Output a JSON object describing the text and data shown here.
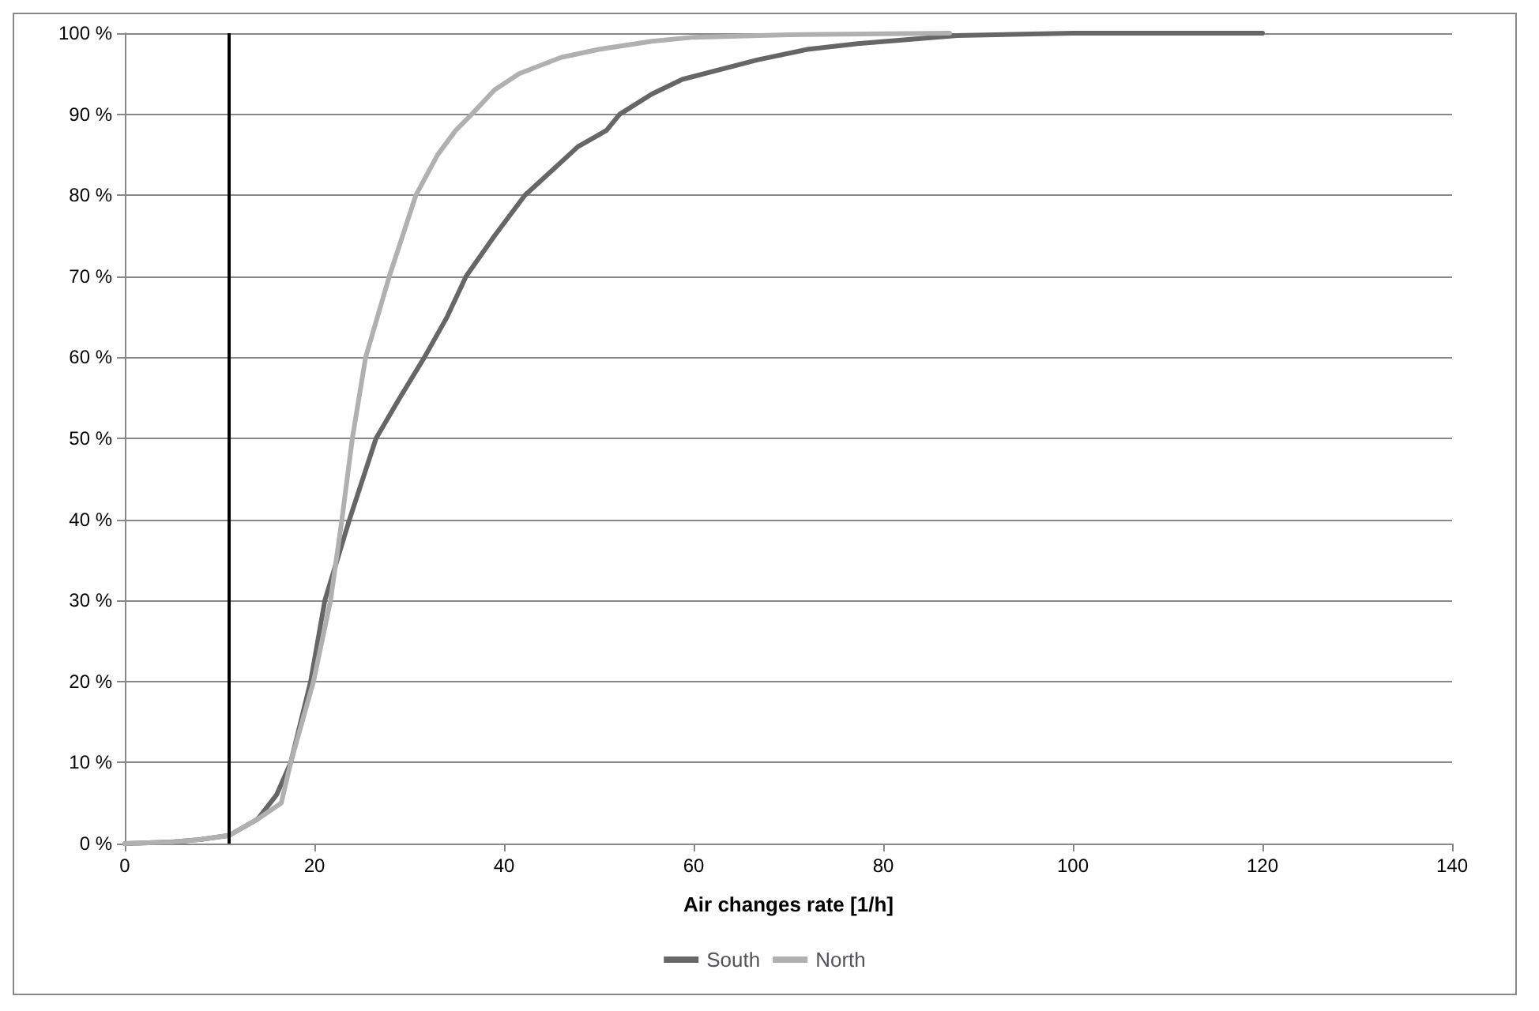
{
  "chart_data": {
    "type": "line",
    "xlabel": "Air changes rate [1/h]",
    "xlim": [
      0,
      140
    ],
    "xticks": [
      0,
      20,
      40,
      60,
      80,
      100,
      120,
      140
    ],
    "ylim": [
      0,
      100
    ],
    "yticks": [
      {
        "value": 0,
        "label": "0 %"
      },
      {
        "value": 10,
        "label": "10 %"
      },
      {
        "value": 20,
        "label": "20 %"
      },
      {
        "value": 30,
        "label": "30 %"
      },
      {
        "value": 40,
        "label": "40 %"
      },
      {
        "value": 50,
        "label": "50 %"
      },
      {
        "value": 60,
        "label": "60 %"
      },
      {
        "value": 70,
        "label": "70 %"
      },
      {
        "value": 80,
        "label": "80 %"
      },
      {
        "value": 90,
        "label": "90 %"
      },
      {
        "value": 100,
        "label": "100 %"
      }
    ],
    "grid": "y",
    "legend": "bottom",
    "marker": "none",
    "line_style": "solid",
    "series": [
      {
        "name": "South",
        "color": "#666666",
        "x": [
          0,
          5,
          8,
          11,
          14,
          16,
          17.5,
          19.6,
          21.1,
          23.7,
          26.5,
          29,
          31.6,
          34,
          36,
          39,
          42.2,
          45,
          47.8,
          50.8,
          52.2,
          55.6,
          58.8,
          66.7,
          72,
          77.3,
          87.8,
          100,
          120
        ],
        "values": [
          0,
          0.2,
          0.5,
          1,
          3,
          6,
          10,
          20,
          30,
          40,
          50,
          55,
          60,
          65,
          70,
          75,
          80,
          83,
          86,
          88,
          90,
          92.5,
          94.3,
          96.7,
          98,
          98.7,
          99.7,
          100,
          100
        ]
      },
      {
        "name": "North",
        "color": "#b0b0b0",
        "x": [
          0,
          5,
          8,
          11,
          14,
          16.5,
          17.5,
          19.9,
          21.7,
          22.9,
          24,
          25.4,
          27.9,
          30.7,
          33,
          34.9,
          36.6,
          39,
          41.6,
          46,
          50,
          55.6,
          60,
          70,
          87
        ],
        "values": [
          0,
          0.2,
          0.5,
          1,
          3,
          5,
          10,
          20,
          30,
          40,
          50,
          60,
          70,
          80,
          85,
          88,
          90,
          93,
          95,
          97,
          98,
          99,
          99.5,
          99.8,
          100
        ]
      }
    ],
    "ref_lines": [
      {
        "axis": "x",
        "value": 11,
        "color": "#000000"
      }
    ]
  }
}
